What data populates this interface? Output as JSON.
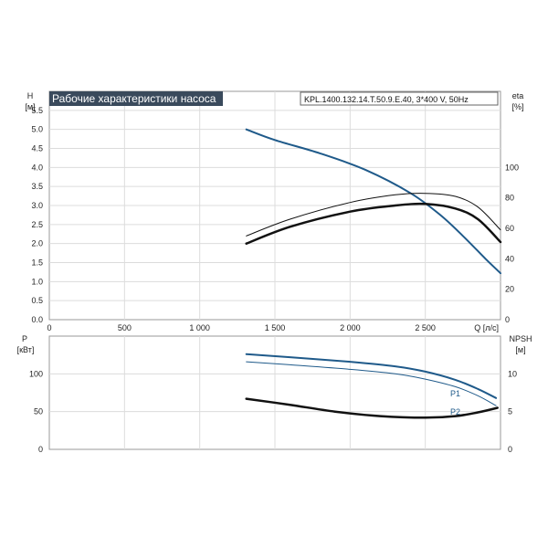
{
  "chart_data": [
    {
      "type": "line",
      "title": "Рабочие характеристики насоса",
      "subtitle": "KPL.1400.132.14.T.50.9.E.40, 3*400 V, 50Hz",
      "xlabel": "Q [л/с]",
      "ylabel_unit": "[м]",
      "ylabel_symbol": "H",
      "y2label_symbol": "eta",
      "y2label_unit": "[%]",
      "xlim": [
        0,
        3000
      ],
      "ylim": [
        0,
        6
      ],
      "y2lim": [
        0,
        150
      ],
      "grid": true,
      "x_ticks": [
        "0",
        "500",
        "1 000",
        "1 500",
        "2 000",
        "2 500"
      ],
      "y_ticks": [
        "0.0",
        "0.5",
        "1.0",
        "1.5",
        "2.0",
        "2.5",
        "3.0",
        "3.5",
        "4.0",
        "4.5",
        "5.0",
        "5.5"
      ],
      "y2_ticks": [
        "0",
        "20",
        "40",
        "60",
        "80",
        "100"
      ],
      "series": [
        {
          "axis": "left",
          "color": "#1f5a8a",
          "width": 2,
          "x": [
            1310,
            1500,
            1800,
            2100,
            2400,
            2600,
            2750,
            2900,
            3000
          ],
          "y": [
            5.0,
            4.72,
            4.37,
            3.94,
            3.33,
            2.75,
            2.2,
            1.6,
            1.22
          ]
        },
        {
          "axis": "right",
          "color": "#111111",
          "width": 1,
          "x": [
            1310,
            1600,
            2000,
            2300,
            2500,
            2700,
            2850,
            3000
          ],
          "y": [
            55,
            66,
            77,
            82,
            83,
            81,
            74,
            59
          ]
        },
        {
          "axis": "right",
          "color": "#111111",
          "width": 2.5,
          "x": [
            1310,
            1600,
            2000,
            2300,
            2500,
            2700,
            2850,
            3000
          ],
          "y": [
            50,
            61,
            71,
            75,
            76,
            73,
            66,
            51
          ]
        }
      ]
    },
    {
      "type": "line",
      "ylabel_symbol": "P",
      "ylabel_unit": "[кВт]",
      "y2label_symbol": "NPSH",
      "y2label_unit": "[м]",
      "xlim": [
        0,
        3000
      ],
      "ylim": [
        0,
        150
      ],
      "y2lim": [
        0,
        15
      ],
      "grid": true,
      "y_ticks": [
        "0",
        "50",
        "100"
      ],
      "y2_ticks": [
        "0",
        "5",
        "10"
      ],
      "series": [
        {
          "name": "P1",
          "axis": "left",
          "color": "#1f5a8a",
          "width": 2,
          "x": [
            1310,
            1600,
            2000,
            2300,
            2500,
            2700,
            2850,
            2970
          ],
          "y": [
            126,
            122,
            116,
            110,
            103,
            92,
            80,
            68
          ]
        },
        {
          "name": "P2",
          "axis": "left",
          "color": "#1f5a8a",
          "width": 1,
          "x": [
            1310,
            1600,
            2000,
            2300,
            2500,
            2700,
            2850,
            2970
          ],
          "y": [
            116,
            112,
            106,
            100,
            93,
            83,
            71,
            58
          ]
        },
        {
          "axis": "right",
          "color": "#111111",
          "width": 2.5,
          "x": [
            1310,
            1600,
            1900,
            2200,
            2500,
            2700,
            2850,
            2980
          ],
          "y": [
            6.7,
            5.9,
            5.0,
            4.4,
            4.2,
            4.4,
            4.9,
            5.5
          ]
        }
      ]
    }
  ]
}
